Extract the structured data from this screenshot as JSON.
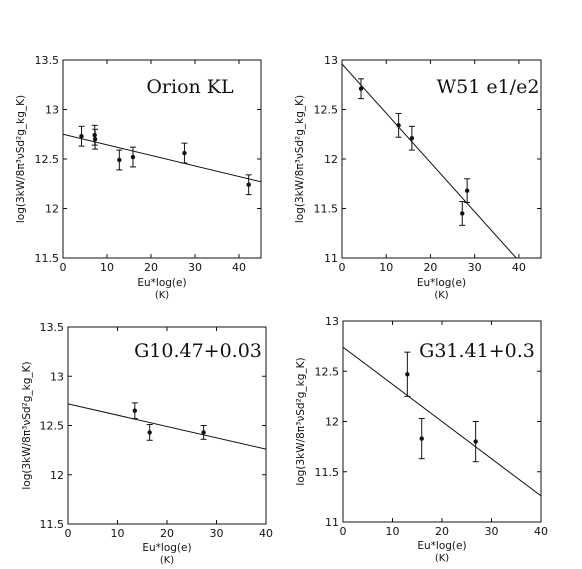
{
  "chart_data": [
    {
      "type": "scatter",
      "title": "Orion KL",
      "xlabel": "Eu*log(e)",
      "xunit": "(K)",
      "ylabel": "log(3kW/8π³νSd²g_kg_K)",
      "xlim": [
        0,
        45
      ],
      "ylim": [
        11.5,
        13.5
      ],
      "xticks": [
        "0",
        "10",
        "20",
        "30",
        "40"
      ],
      "yticks": [
        "11.5",
        "12",
        "12.5",
        "13",
        "13.5"
      ],
      "points": [
        {
          "x": 4.2,
          "y": 12.73,
          "err": 0.1
        },
        {
          "x": 7.2,
          "y": 12.74,
          "err": 0.1
        },
        {
          "x": 7.3,
          "y": 12.7,
          "err": 0.1
        },
        {
          "x": 12.8,
          "y": 12.49,
          "err": 0.1
        },
        {
          "x": 15.9,
          "y": 12.52,
          "err": 0.1
        },
        {
          "x": 27.6,
          "y": 12.56,
          "err": 0.1
        },
        {
          "x": 42.2,
          "y": 12.24,
          "err": 0.1
        }
      ],
      "fit": {
        "x0": 0,
        "y0": 12.75,
        "x1": 45,
        "y1": 12.27
      }
    },
    {
      "type": "scatter",
      "title": "W51 e1/e2",
      "xlabel": "Eu*log(e)",
      "xunit": "(K)",
      "ylabel": "log(3kW/8π³νSd²g_kg_K)",
      "xlim": [
        0,
        45
      ],
      "ylim": [
        11,
        13
      ],
      "xticks": [
        "0",
        "10",
        "20",
        "30",
        "40"
      ],
      "yticks": [
        "11",
        "11.5",
        "12",
        "12.5",
        "13"
      ],
      "points": [
        {
          "x": 4.3,
          "y": 12.71,
          "err": 0.1
        },
        {
          "x": 12.8,
          "y": 12.34,
          "err": 0.12
        },
        {
          "x": 15.8,
          "y": 12.21,
          "err": 0.12
        },
        {
          "x": 27.2,
          "y": 11.45,
          "err": 0.12
        },
        {
          "x": 28.3,
          "y": 11.68,
          "err": 0.12
        }
      ],
      "fit": {
        "x0": 0,
        "y0": 12.96,
        "x1": 39.4,
        "y1": 11.0
      }
    },
    {
      "type": "scatter",
      "title": "G10.47+0.03",
      "xlabel": "Eu*log(e)",
      "xunit": "(K)",
      "ylabel": "log(3kW/8π³νSd²g_kg_K)",
      "xlim": [
        0,
        40
      ],
      "ylim": [
        11.5,
        13.5
      ],
      "xticks": [
        "0",
        "10",
        "20",
        "30",
        "40"
      ],
      "yticks": [
        "11.5",
        "12",
        "12.5",
        "13",
        "13.5"
      ],
      "points": [
        {
          "x": 13.5,
          "y": 12.65,
          "err": 0.08
        },
        {
          "x": 16.5,
          "y": 12.43,
          "err": 0.08
        },
        {
          "x": 27.4,
          "y": 12.43,
          "err": 0.07
        }
      ],
      "fit": {
        "x0": 0,
        "y0": 12.72,
        "x1": 40,
        "y1": 12.26
      }
    },
    {
      "type": "scatter",
      "title": "G31.41+0.3",
      "xlabel": "Eu*log(e)",
      "xunit": "(K)",
      "ylabel": "log(3kW/8π³νSd²g_kg_K)",
      "xlim": [
        0,
        40
      ],
      "ylim": [
        11,
        13
      ],
      "xticks": [
        "0",
        "10",
        "20",
        "30",
        "40"
      ],
      "yticks": [
        "11",
        "11.5",
        "12",
        "12.5",
        "13"
      ],
      "points": [
        {
          "x": 13.0,
          "y": 12.47,
          "err": 0.22
        },
        {
          "x": 15.9,
          "y": 11.83,
          "err": 0.2
        },
        {
          "x": 26.8,
          "y": 11.8,
          "err": 0.2
        }
      ],
      "fit": {
        "x0": 0,
        "y0": 12.74,
        "x1": 40,
        "y1": 11.26
      }
    }
  ]
}
